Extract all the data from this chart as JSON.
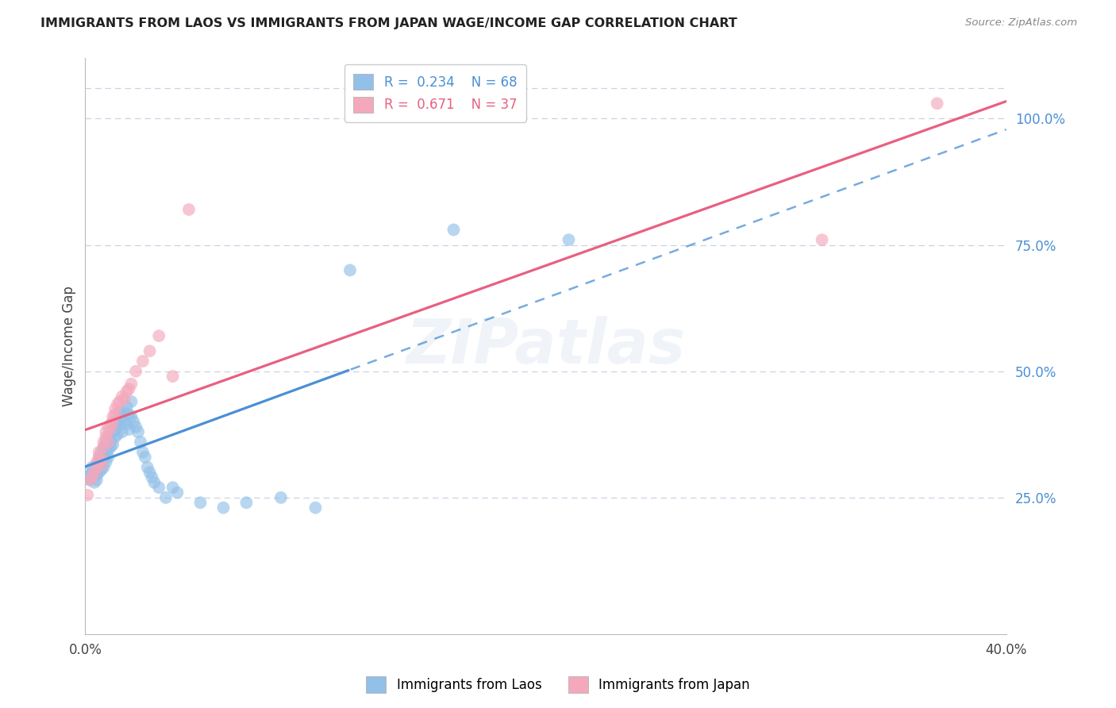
{
  "title": "IMMIGRANTS FROM LAOS VS IMMIGRANTS FROM JAPAN WAGE/INCOME GAP CORRELATION CHART",
  "source": "Source: ZipAtlas.com",
  "ylabel": "Wage/Income Gap",
  "xlim": [
    0.0,
    0.4
  ],
  "ylim": [
    -0.02,
    1.12
  ],
  "xtick_positions": [
    0.0,
    0.1,
    0.2,
    0.3,
    0.4
  ],
  "xtick_labels": [
    "0.0%",
    "",
    "",
    "",
    "40.0%"
  ],
  "ytick_labels_right": [
    "25.0%",
    "50.0%",
    "75.0%",
    "100.0%"
  ],
  "ytick_positions_right": [
    0.25,
    0.5,
    0.75,
    1.0
  ],
  "legend_label1": "Immigrants from Laos",
  "legend_label2": "Immigrants from Japan",
  "R1": "0.234",
  "N1": "68",
  "R2": "0.671",
  "N2": "37",
  "color_laos": "#92c0e8",
  "color_japan": "#f4a8bc",
  "color_laos_line": "#4a8fd4",
  "color_japan_line": "#e86080",
  "watermark": "ZIPatlas",
  "background_color": "#ffffff",
  "grid_color": "#c8d4e4",
  "laos_x": [
    0.001,
    0.002,
    0.002,
    0.003,
    0.003,
    0.004,
    0.004,
    0.005,
    0.005,
    0.005,
    0.006,
    0.006,
    0.006,
    0.007,
    0.007,
    0.007,
    0.008,
    0.008,
    0.008,
    0.009,
    0.009,
    0.009,
    0.01,
    0.01,
    0.01,
    0.011,
    0.011,
    0.012,
    0.012,
    0.013,
    0.013,
    0.013,
    0.014,
    0.014,
    0.015,
    0.015,
    0.016,
    0.016,
    0.017,
    0.017,
    0.018,
    0.018,
    0.019,
    0.019,
    0.02,
    0.02,
    0.021,
    0.022,
    0.023,
    0.024,
    0.025,
    0.026,
    0.027,
    0.028,
    0.029,
    0.03,
    0.032,
    0.035,
    0.038,
    0.04,
    0.05,
    0.06,
    0.07,
    0.085,
    0.1,
    0.115,
    0.16,
    0.21
  ],
  "laos_y": [
    0.29,
    0.295,
    0.285,
    0.31,
    0.3,
    0.28,
    0.295,
    0.315,
    0.295,
    0.285,
    0.33,
    0.32,
    0.3,
    0.34,
    0.315,
    0.305,
    0.35,
    0.33,
    0.31,
    0.36,
    0.34,
    0.32,
    0.37,
    0.345,
    0.33,
    0.36,
    0.35,
    0.38,
    0.355,
    0.37,
    0.4,
    0.385,
    0.39,
    0.375,
    0.42,
    0.395,
    0.41,
    0.38,
    0.42,
    0.4,
    0.43,
    0.395,
    0.415,
    0.385,
    0.44,
    0.41,
    0.4,
    0.39,
    0.38,
    0.36,
    0.34,
    0.33,
    0.31,
    0.3,
    0.29,
    0.28,
    0.27,
    0.25,
    0.27,
    0.26,
    0.24,
    0.23,
    0.24,
    0.25,
    0.23,
    0.7,
    0.78,
    0.76
  ],
  "japan_x": [
    0.001,
    0.002,
    0.003,
    0.004,
    0.005,
    0.005,
    0.006,
    0.006,
    0.007,
    0.007,
    0.008,
    0.008,
    0.009,
    0.009,
    0.01,
    0.01,
    0.011,
    0.011,
    0.012,
    0.012,
    0.013,
    0.013,
    0.014,
    0.015,
    0.016,
    0.017,
    0.018,
    0.019,
    0.02,
    0.022,
    0.025,
    0.028,
    0.032,
    0.038,
    0.045,
    0.32,
    0.37
  ],
  "japan_y": [
    0.255,
    0.285,
    0.29,
    0.3,
    0.31,
    0.32,
    0.33,
    0.34,
    0.325,
    0.315,
    0.35,
    0.36,
    0.37,
    0.38,
    0.36,
    0.39,
    0.395,
    0.385,
    0.4,
    0.41,
    0.415,
    0.425,
    0.435,
    0.44,
    0.45,
    0.445,
    0.46,
    0.465,
    0.475,
    0.5,
    0.52,
    0.54,
    0.57,
    0.49,
    0.82,
    0.76,
    1.03
  ],
  "laos_line_solid_end": 0.115,
  "japan_line_intercept": 0.26,
  "japan_line_slope": 2.05
}
